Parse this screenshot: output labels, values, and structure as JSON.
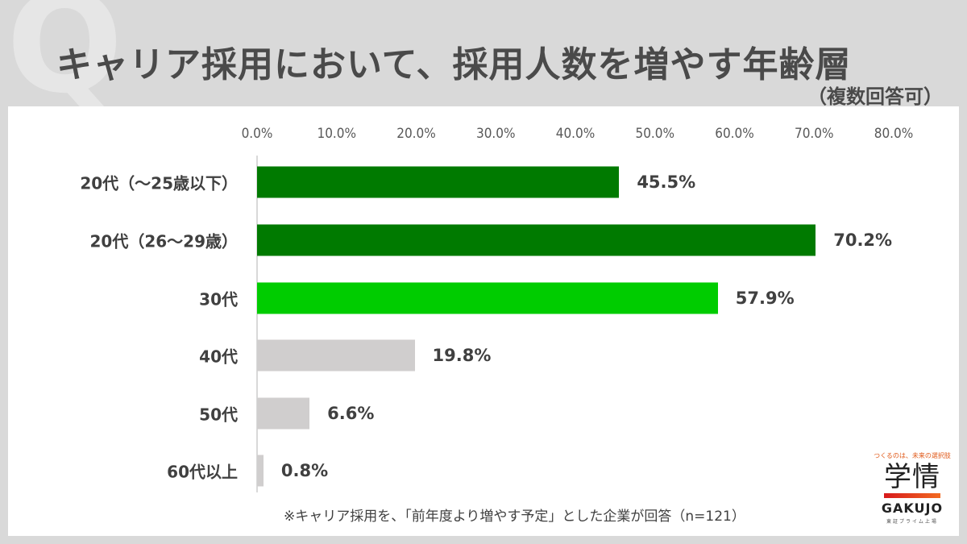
{
  "header": {
    "watermark": "Q",
    "title": "キャリア採用において、採用人数を増やす年齢層",
    "subtitle": "（複数回答可）"
  },
  "axis": {
    "ticks": [
      "0.0%",
      "10.0%",
      "20.0%",
      "30.0%",
      "40.0%",
      "50.0%",
      "60.0%",
      "70.0%",
      "80.0%"
    ]
  },
  "rows": [
    {
      "label": "20代（～25歳以下）",
      "value": 45.5,
      "value_label": "45.5%",
      "color": "#007a00"
    },
    {
      "label": "20代（26～29歳）",
      "value": 70.2,
      "value_label": "70.2%",
      "color": "#007a00"
    },
    {
      "label": "30代",
      "value": 57.9,
      "value_label": "57.9%",
      "color": "#00cc00"
    },
    {
      "label": "40代",
      "value": 19.8,
      "value_label": "19.8%",
      "color": "#d0cece"
    },
    {
      "label": "50代",
      "value": 6.6,
      "value_label": "6.6%",
      "color": "#d0cece"
    },
    {
      "label": "60代以上",
      "value": 0.8,
      "value_label": "0.8%",
      "color": "#d0cece"
    }
  ],
  "footnote": "※キャリア採用を、「前年度より増やす予定」とした企業が回答（n=121）",
  "logo": {
    "tagline": "つくるのは、未来の選択肢",
    "kanji": "学情",
    "wordmark": "GAKUJO",
    "listing": "東証プライム上場"
  },
  "chart_data": {
    "type": "bar",
    "orientation": "horizontal",
    "title": "キャリア採用において、採用人数を増やす年齢層",
    "subtitle": "（複数回答可）",
    "categories": [
      "20代（～25歳以下）",
      "20代（26～29歳）",
      "30代",
      "40代",
      "50代",
      "60代以上"
    ],
    "values": [
      45.5,
      70.2,
      57.9,
      19.8,
      6.6,
      0.8
    ],
    "unit": "%",
    "xlabel": "",
    "ylabel": "",
    "xlim": [
      0,
      80
    ],
    "tick_labels": [
      "0.0%",
      "10.0%",
      "20.0%",
      "30.0%",
      "40.0%",
      "50.0%",
      "60.0%",
      "70.0%",
      "80.0%"
    ],
    "grid": false,
    "legend": null,
    "bar_colors": [
      "#007a00",
      "#007a00",
      "#00cc00",
      "#d0cece",
      "#d0cece",
      "#d0cece"
    ],
    "annotation": "※キャリア採用を、「前年度より増やす予定」とした企業が回答（n=121）"
  }
}
